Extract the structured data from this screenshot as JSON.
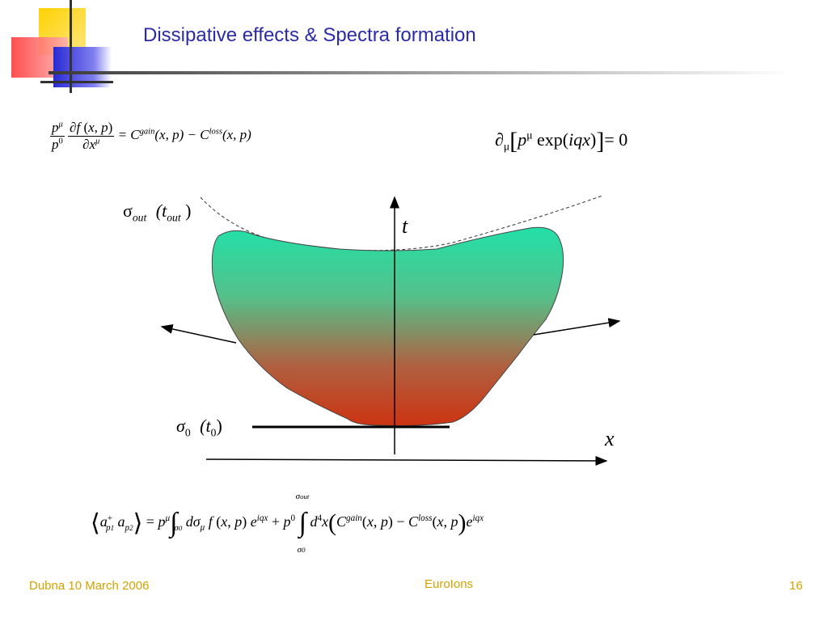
{
  "slide": {
    "title": "Dissipative effects & Spectra formation",
    "footer_left": "Dubna 10 March 2006",
    "footer_center": "EuroIons",
    "footer_right": "16"
  },
  "equations": {
    "kinetic_rhs": "= C",
    "gain": "gain",
    "xp1": "(x, p) − C",
    "loss": "loss",
    "xp2": "(x, p)",
    "conservation": "= 0"
  },
  "diagram": {
    "sigma_out": "σ",
    "out_sub": "out",
    "t_out_paren_open": "(t",
    "t_out_paren_close": ")",
    "sigma_0": "σ",
    "zero_sub": "0",
    "t_0_open": "(t",
    "t_0_close": ")",
    "t_axis": "t",
    "x_axis": "x"
  },
  "colors": {
    "title": "#2b2ba8",
    "footer": "#d4a200",
    "fill_top": "#22e0a8",
    "fill_bottom": "#cc3311",
    "deco_yellow": "#ffd200",
    "deco_red": "#ff3b3b",
    "deco_blue": "#2a2ad4"
  }
}
